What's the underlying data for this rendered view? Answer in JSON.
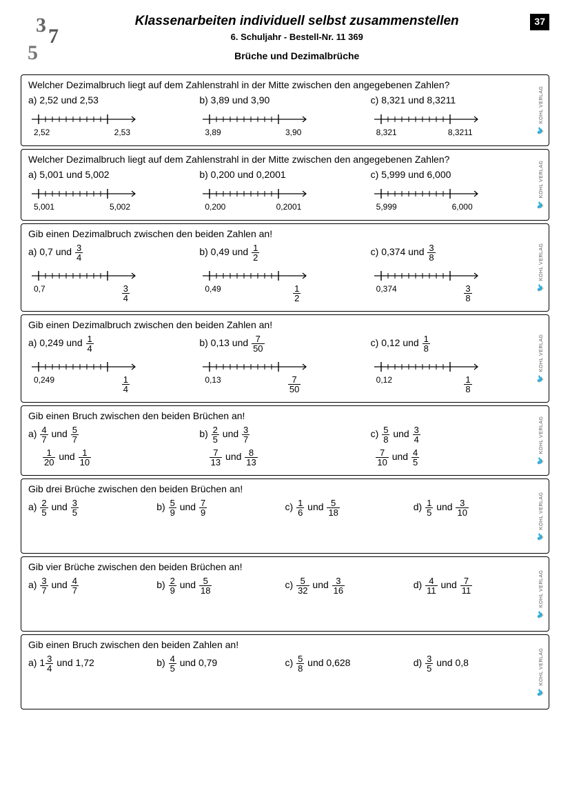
{
  "header": {
    "title": "Klassenarbeiten individuell selbst zusammenstellen",
    "subtitle": "6. Schuljahr   -   Bestell-Nr. 11 369",
    "section": "Brüche und Dezimalbrüche",
    "page": "37"
  },
  "publisher": "KOHL VERLAG",
  "ex1": {
    "q": "Welcher Dezimalbruch liegt auf dem Zahlenstrahl in der Mitte zwischen den angegebenen Zahlen?",
    "a": "a)  2,52 und 2,53",
    "al": "2,52",
    "ar": "2,53",
    "b": "b)  3,89 und 3,90",
    "bl": "3,89",
    "br": "3,90",
    "c": "c)  8,321 und 8,3211",
    "cl": "8,321",
    "cr": "8,3211"
  },
  "ex2": {
    "q": "Welcher Dezimalbruch liegt auf dem Zahlenstrahl in der Mitte zwischen den angegebenen Zahlen?",
    "a": "a)  5,001 und 5,002",
    "al": "5,001",
    "ar": "5,002",
    "b": "b)  0,200 und 0,2001",
    "bl": "0,200",
    "br": "0,2001",
    "c": "c)  5,999 und 6,000",
    "cl": "5,999",
    "cr": "6,000"
  },
  "ex3": {
    "q": "Gib einen Dezimalbruch zwischen den beiden Zahlen an!",
    "a_pre": "a)  0,7 und ",
    "a_n": "3",
    "a_d": "4",
    "b_pre": "b)  0,49 und ",
    "b_n": "1",
    "b_d": "2",
    "c_pre": "c)  0,374 und ",
    "c_n": "3",
    "c_d": "8",
    "al": "0,7",
    "bl": "0,49",
    "cl": "0,374"
  },
  "ex4": {
    "q": "Gib einen Dezimalbruch zwischen den beiden Zahlen an!",
    "a_pre": "a)  0,249 und ",
    "a_n": "1",
    "a_d": "4",
    "b_pre": "b)  0,13 und ",
    "b_n": "7",
    "b_d": "50",
    "c_pre": "c)  0,12 und ",
    "c_n": "1",
    "c_d": "8",
    "al": "0,249",
    "bl": "0,13",
    "cl": "0,12"
  },
  "ex5": {
    "q": "Gib einen Bruch zwischen den beiden Brüchen an!",
    "a1n": "4",
    "a1d": "7",
    "a2n": "5",
    "a2d": "7",
    "b1n": "2",
    "b1d": "5",
    "b2n": "3",
    "b2d": "7",
    "c1n": "5",
    "c1d": "8",
    "c2n": "3",
    "c2d": "4",
    "d1n": "1",
    "d1d": "20",
    "d2n": "1",
    "d2d": "10",
    "e1n": "7",
    "e1d": "13",
    "e2n": "8",
    "e2d": "13",
    "f1n": "7",
    "f1d": "10",
    "f2n": "4",
    "f2d": "5",
    "und": " und "
  },
  "ex6": {
    "q": "Gib drei Brüche zwischen den beiden Brüchen an!",
    "a1n": "2",
    "a1d": "5",
    "a2n": "3",
    "a2d": "5",
    "b1n": "5",
    "b1d": "9",
    "b2n": "7",
    "b2d": "9",
    "c1n": "1",
    "c1d": "6",
    "c2n": "5",
    "c2d": "18",
    "d1n": "1",
    "d1d": "5",
    "d2n": "3",
    "d2d": "10",
    "und": " und "
  },
  "ex7": {
    "q": "Gib vier Brüche zwischen den beiden Brüchen an!",
    "a1n": "3",
    "a1d": "7",
    "a2n": "4",
    "a2d": "7",
    "b1n": "2",
    "b1d": "9",
    "b2n": "5",
    "b2d": "18",
    "c1n": "5",
    "c1d": "32",
    "c2n": "3",
    "c2d": "16",
    "d1n": "4",
    "d1d": "11",
    "d2n": "7",
    "d2d": "11",
    "und": " und "
  },
  "ex8": {
    "q": "Gib einen Bruch zwischen den beiden Zahlen an!",
    "a_whole": "1",
    "a_n": "3",
    "a_d": "4",
    "a_dec": " und 1,72",
    "b_n": "4",
    "b_d": "5",
    "b_dec": " und 0,79",
    "c_n": "5",
    "c_d": "8",
    "c_dec": " und 0,628",
    "d_n": "3",
    "d_d": "5",
    "d_dec": " und 0,8"
  },
  "labels": {
    "a": "a)  ",
    "b": "b)  ",
    "c": "c)  ",
    "d": "d)  "
  }
}
